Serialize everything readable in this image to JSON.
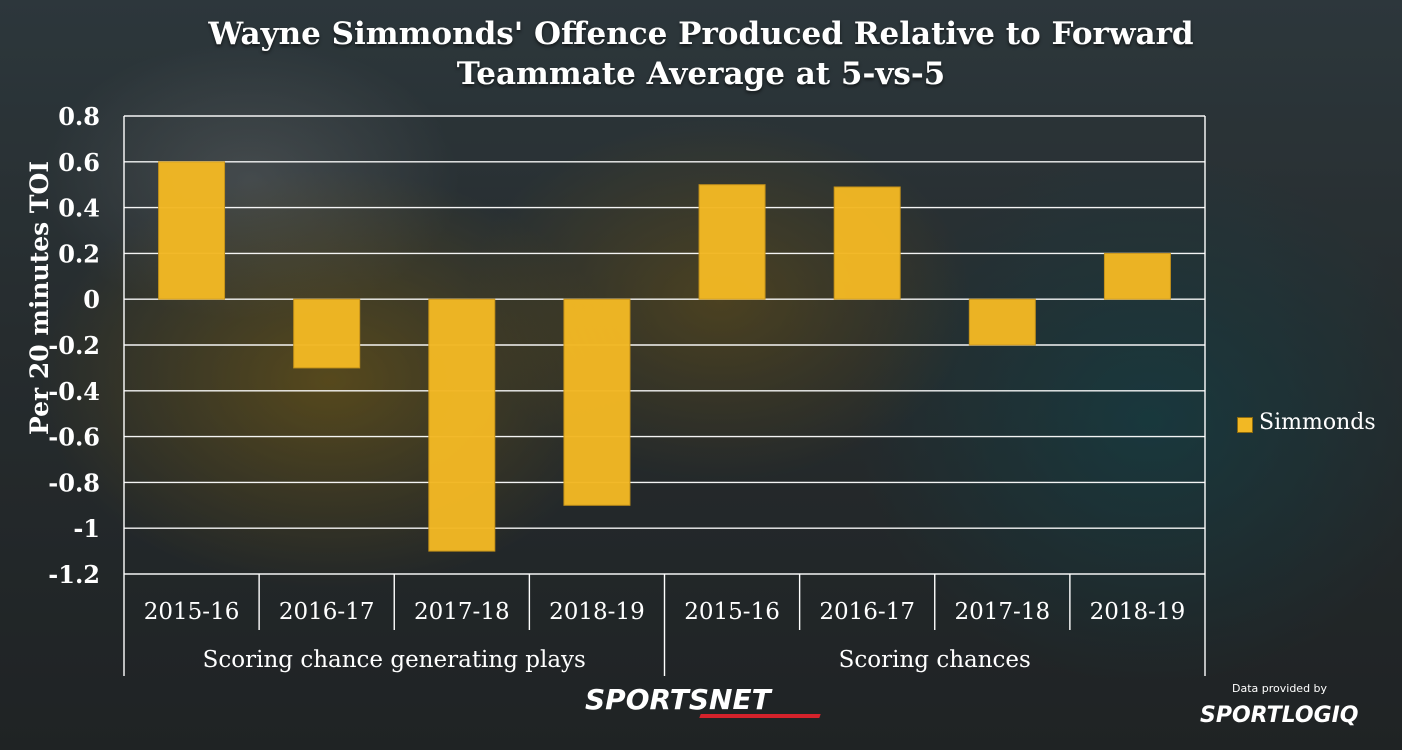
{
  "chart_data": {
    "type": "bar",
    "title_line1": "Wayne Simmonds' Offence Produced Relative to Forward",
    "title_line2": "Teammate Average at 5-vs-5",
    "ylabel": "Per 20 minutes TOI",
    "ylim": [
      -1.2,
      0.8
    ],
    "yticks": [
      "0.8",
      "0.6",
      "0.4",
      "0.2",
      "0",
      "-0.2",
      "-0.4",
      "-0.6",
      "-0.8",
      "-1",
      "-1.2"
    ],
    "ytick_values": [
      0.8,
      0.6,
      0.4,
      0.2,
      0,
      -0.2,
      -0.4,
      -0.6,
      -0.8,
      -1,
      -1.2
    ],
    "grid": true,
    "legend_position": "right",
    "groups": [
      "Scoring chance generating plays",
      "Scoring chances"
    ],
    "categories": [
      "2015-16",
      "2016-17",
      "2017-18",
      "2018-19",
      "2015-16",
      "2016-17",
      "2017-18",
      "2018-19"
    ],
    "series": [
      {
        "name": "Simmonds",
        "color": "#f2b824",
        "values": [
          0.6,
          -0.3,
          -1.1,
          -0.9,
          0.5,
          0.49,
          -0.2,
          0.2
        ]
      }
    ]
  },
  "branding": {
    "sportsnet": "SPORTSNET",
    "credit_label": "Data provided by",
    "credit_brand": "SPORTLOGIQ"
  }
}
